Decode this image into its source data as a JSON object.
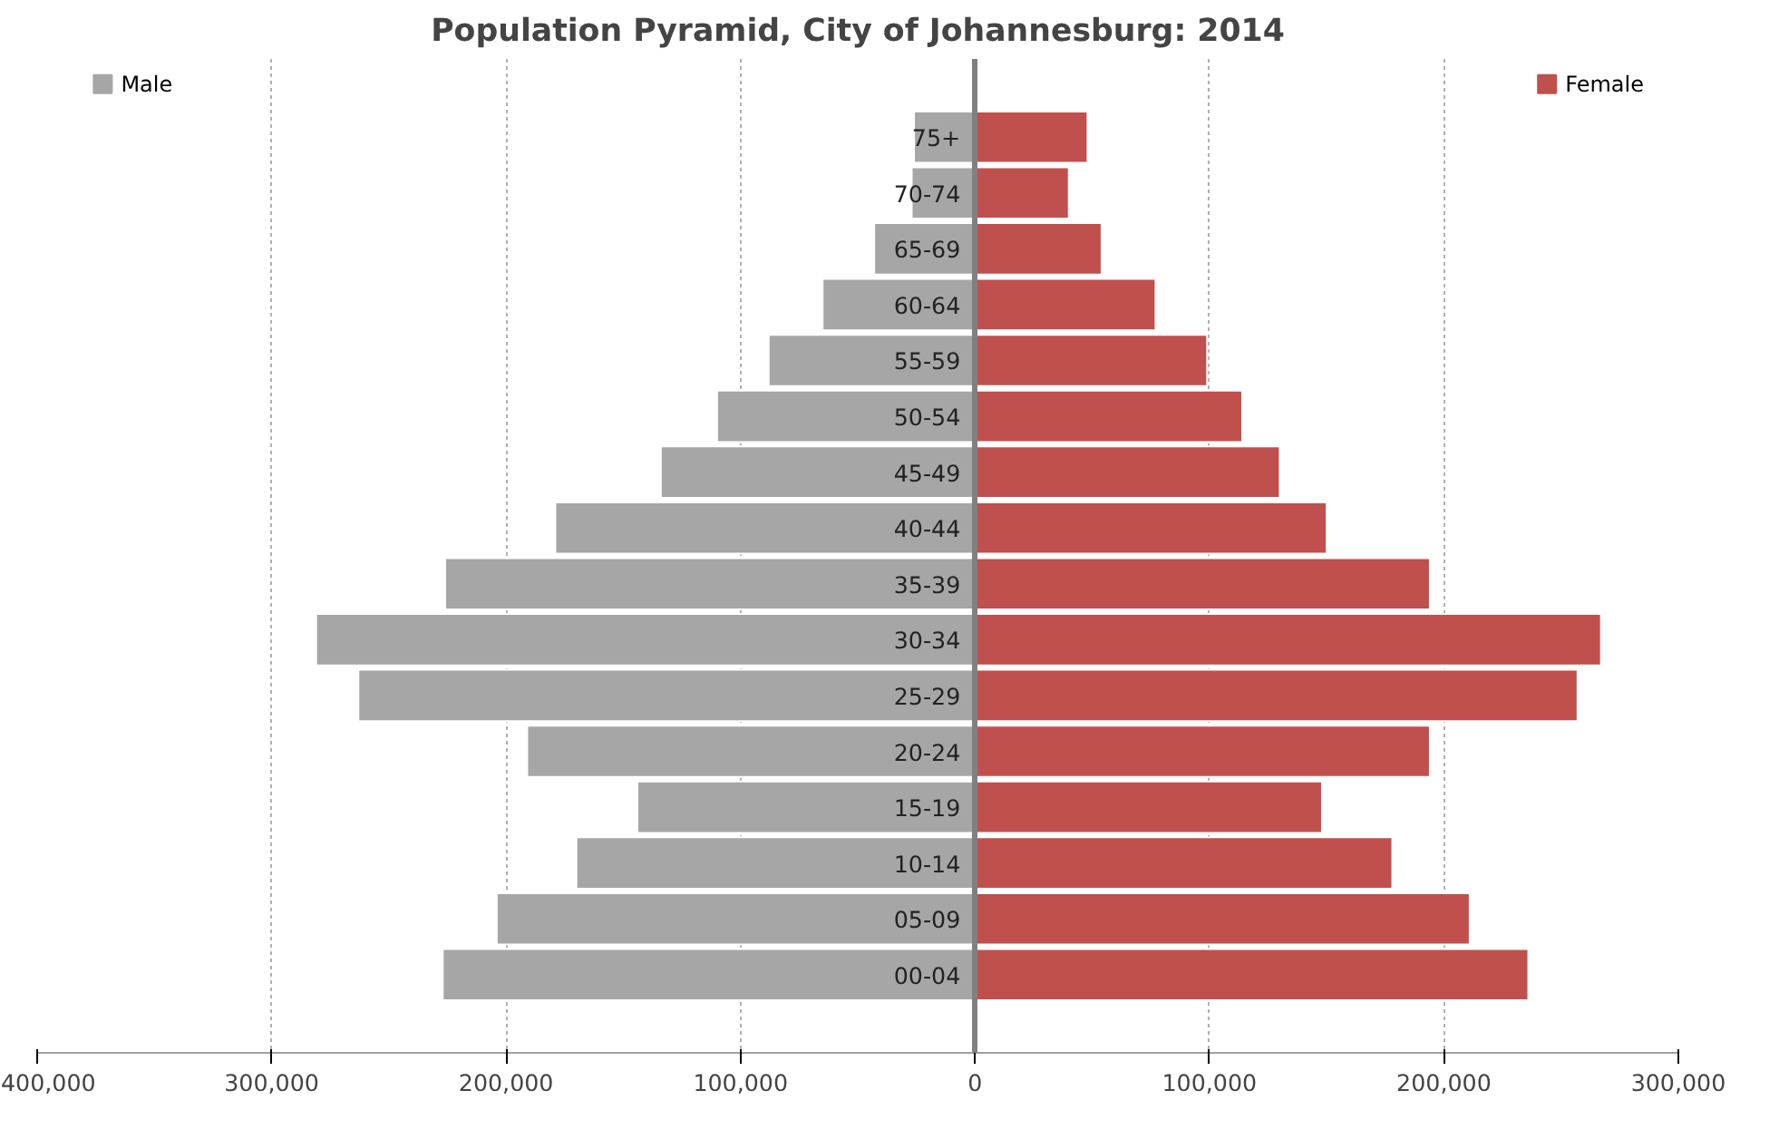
{
  "chart_data": {
    "type": "bar",
    "orientation": "horizontal",
    "stacked": true,
    "title": "Population Pyramid, City of Johannesburg: 2014",
    "categories": [
      "75+",
      "70-74",
      "65-69",
      "60-64",
      "55-59",
      "50-54",
      "45-49",
      "40-44",
      "35-39",
      "30-34",
      "25-29",
      "20-24",
      "15-19",
      "10-14",
      "05-09",
      "00-04"
    ],
    "series": [
      {
        "name": "Male",
        "color": "#a6a6a6",
        "values": [
          -26000,
          -27000,
          -43000,
          -65000,
          -88000,
          -110000,
          -134000,
          -179000,
          -226000,
          -281000,
          -263000,
          -191000,
          -144000,
          -170000,
          -204000,
          -227000
        ]
      },
      {
        "name": "Female",
        "color": "#c0504d",
        "values": [
          48000,
          40000,
          54000,
          77000,
          99000,
          114000,
          130000,
          150000,
          194000,
          267000,
          257000,
          194000,
          148000,
          178000,
          211000,
          236000
        ]
      }
    ],
    "xlim": [
      -400000,
      300000
    ],
    "xticks": [
      {
        "value": -400000,
        "label": "400,000"
      },
      {
        "value": -300000,
        "label": "300,000"
      },
      {
        "value": -200000,
        "label": "200,000"
      },
      {
        "value": -100000,
        "label": "100,000"
      },
      0,
      {
        "value": 100000,
        "label": "100,000"
      },
      {
        "value": 200000,
        "label": "200,000"
      },
      {
        "value": 300000,
        "label": "300,000"
      }
    ],
    "grid": "x",
    "legend": "top"
  }
}
